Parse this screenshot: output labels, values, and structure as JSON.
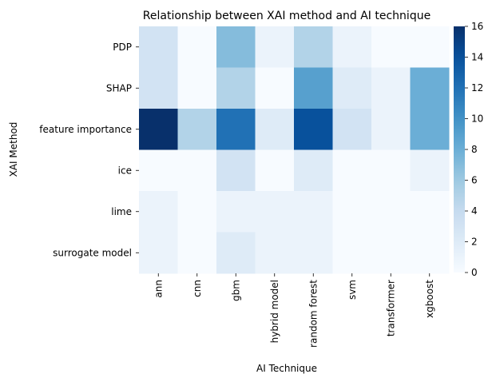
{
  "chart_data": {
    "type": "heatmap",
    "title": "Relationship between XAI method and AI technique",
    "xlabel": "AI Technique",
    "ylabel": "XAI Method",
    "x_categories": [
      "ann",
      "cnn",
      "gbm",
      "hybrid model",
      "random forest",
      "svm",
      "transformer",
      "xgboost"
    ],
    "y_categories": [
      "PDP",
      "SHAP",
      "feature importance",
      "ice",
      "lime",
      "surrogate model"
    ],
    "values": [
      [
        3,
        0,
        7,
        1,
        5,
        1,
        0,
        0
      ],
      [
        3,
        0,
        5,
        0,
        9,
        2,
        1,
        8
      ],
      [
        16,
        5,
        12,
        2,
        14,
        3,
        1,
        8
      ],
      [
        0,
        0,
        3,
        0,
        2,
        0,
        0,
        1
      ],
      [
        1,
        0,
        1,
        1,
        1,
        0,
        0,
        0
      ],
      [
        1,
        0,
        2,
        1,
        1,
        0,
        0,
        0
      ]
    ],
    "colorbar": {
      "min": 0,
      "max": 16,
      "ticks": [
        0,
        2,
        4,
        6,
        8,
        10,
        12,
        14,
        16
      ],
      "colormap": "Blues",
      "low_color": "#f7fbff",
      "high_color": "#08306b"
    }
  }
}
